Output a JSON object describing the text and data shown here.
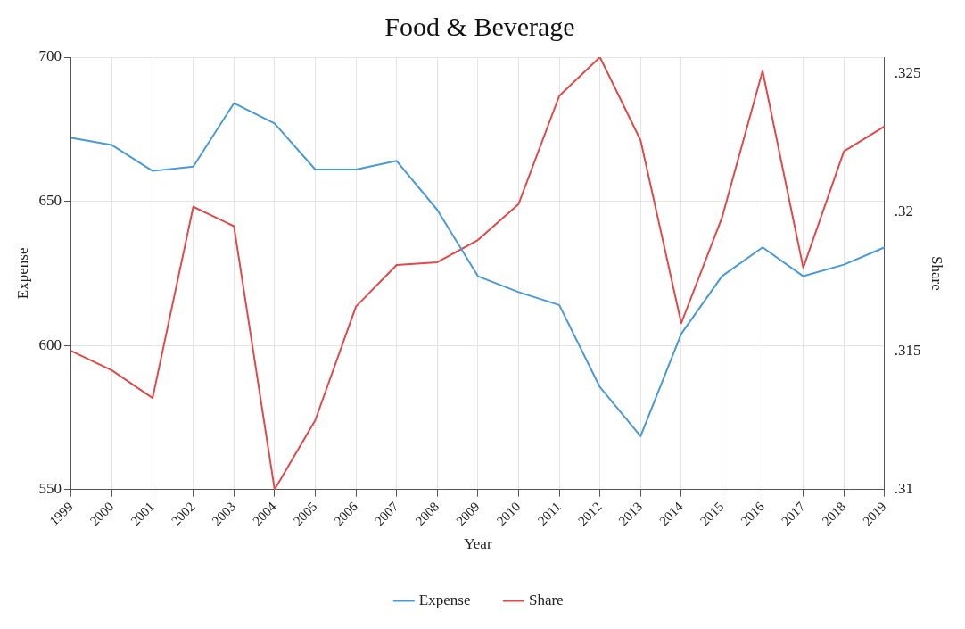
{
  "chart_data": {
    "type": "line",
    "title": "Food & Beverage",
    "xlabel": "Year",
    "ylabel": "Expense",
    "y2label": "Share",
    "categories": [
      "1999",
      "2000",
      "2001",
      "2002",
      "2003",
      "2004",
      "2005",
      "2006",
      "2007",
      "2008",
      "2009",
      "2010",
      "2011",
      "2012",
      "2013",
      "2014",
      "2015",
      "2016",
      "2017",
      "2018",
      "2019"
    ],
    "series": [
      {
        "name": "Expense",
        "color": "#4a9ad6",
        "values": [
          672,
          669.5,
          660.5,
          662,
          684,
          677,
          661,
          661,
          664,
          647,
          624,
          618.5,
          614,
          585.5,
          568.5,
          604,
          624,
          634,
          624,
          628,
          634
        ]
      },
      {
        "name": "Share",
        "color": "#e04a4a",
        "axis": "y2",
        "values": [
          0.315,
          0.3143,
          0.3133,
          0.3202,
          0.3195,
          0.31,
          0.3125,
          0.3166,
          0.3181,
          0.3182,
          0.319,
          0.3203,
          0.3242,
          0.3256,
          0.3226,
          0.316,
          0.3198,
          0.3251,
          0.318,
          0.3222,
          0.3231
        ]
      }
    ],
    "ylim": [
      550,
      700
    ],
    "yticks": [
      550,
      600,
      650,
      700
    ],
    "y2lim": [
      0.31,
      0.3256
    ],
    "y2ticks": [
      {
        "value": 0.31,
        "label": ".31"
      },
      {
        "value": 0.315,
        "label": ".315"
      },
      {
        "value": 0.32,
        "label": ".32"
      },
      {
        "value": 0.325,
        "label": ".325"
      }
    ],
    "grid": true,
    "legend": "bottom",
    "marker": "none",
    "line_style": "solid"
  }
}
